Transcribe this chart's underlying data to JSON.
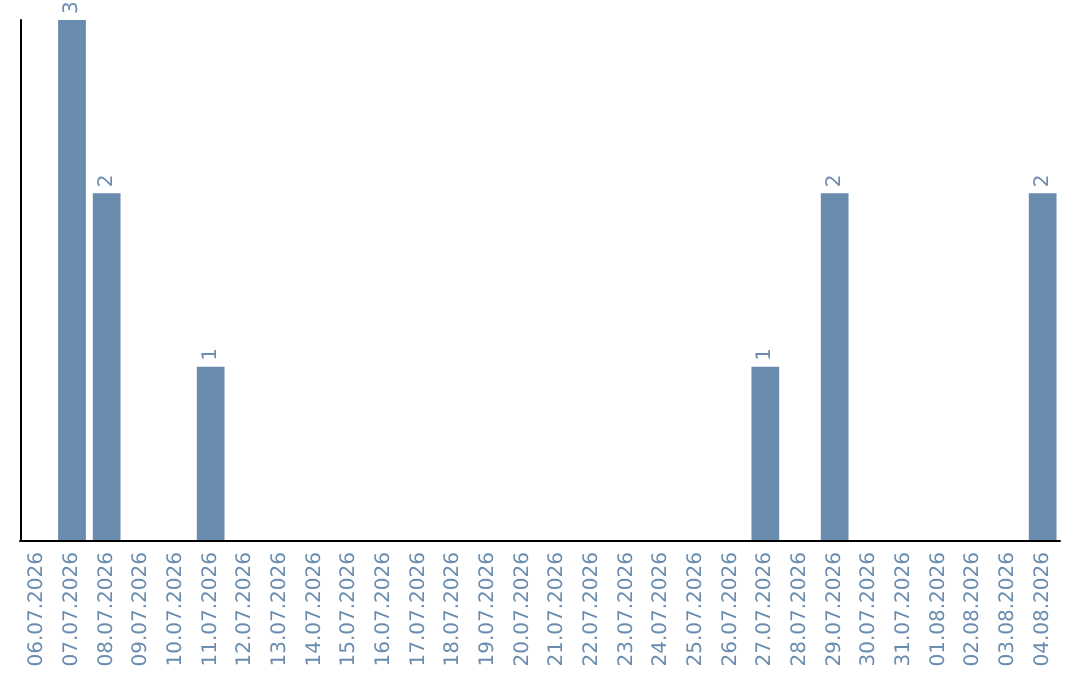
{
  "chart_data": {
    "type": "bar",
    "categories": [
      "06.07.2026",
      "07.07.2026",
      "08.07.2026",
      "09.07.2026",
      "10.07.2026",
      "11.07.2026",
      "12.07.2026",
      "13.07.2026",
      "14.07.2026",
      "15.07.2026",
      "16.07.2026",
      "17.07.2026",
      "18.07.2026",
      "19.07.2026",
      "20.07.2026",
      "21.07.2026",
      "22.07.2026",
      "23.07.2026",
      "24.07.2026",
      "25.07.2026",
      "26.07.2026",
      "27.07.2026",
      "28.07.2026",
      "29.07.2026",
      "30.07.2026",
      "31.07.2026",
      "01.08.2026",
      "02.08.2026",
      "03.08.2026",
      "04.08.2026"
    ],
    "values": [
      0,
      3,
      2,
      0,
      0,
      1,
      0,
      0,
      0,
      0,
      0,
      0,
      0,
      0,
      0,
      0,
      0,
      0,
      0,
      0,
      0,
      1,
      0,
      2,
      0,
      0,
      0,
      0,
      0,
      2
    ],
    "value_labels": [
      null,
      "3",
      "2",
      null,
      null,
      "1",
      null,
      null,
      null,
      null,
      null,
      null,
      null,
      null,
      null,
      null,
      null,
      null,
      null,
      null,
      null,
      "1",
      null,
      "2",
      null,
      null,
      null,
      null,
      null,
      "2"
    ],
    "color": "#6a8caf",
    "tick_labels": "x",
    "grid": false
  }
}
